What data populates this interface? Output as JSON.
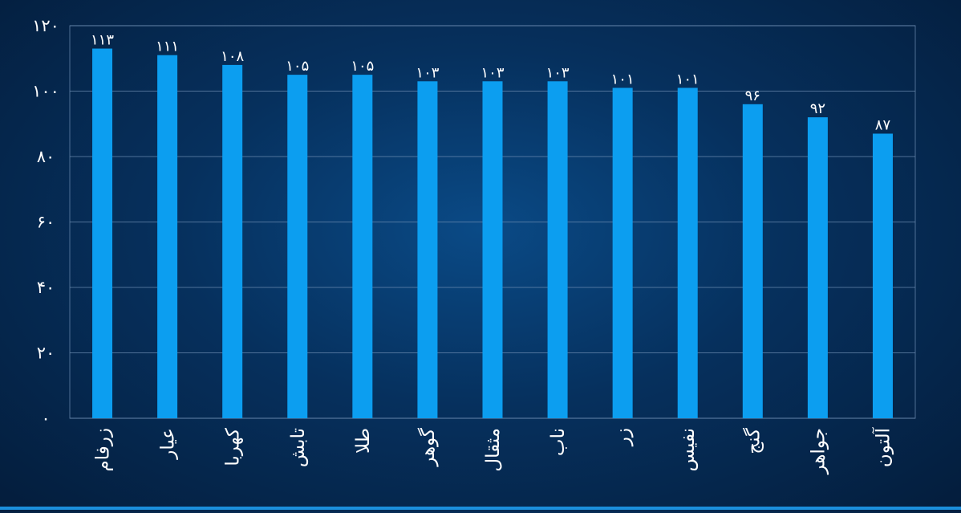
{
  "chart_data": {
    "type": "bar",
    "categories": [
      "زرفام",
      "عیار",
      "کهربا",
      "تابش",
      "طلا",
      "گوهر",
      "مثقال",
      "ناب",
      "زر",
      "نفیس",
      "گنج",
      "جواهر",
      "آلتون"
    ],
    "values": [
      113,
      111,
      108,
      105,
      105,
      103,
      103,
      103,
      101,
      101,
      96,
      92,
      87
    ],
    "value_labels": [
      "۱۱۳",
      "۱۱۱",
      "۱۰۸",
      "۱۰۵",
      "۱۰۵",
      "۱۰۳",
      "۱۰۳",
      "۱۰۳",
      "۱۰۱",
      "۱۰۱",
      "۹۶",
      "۹۲",
      "۸۷"
    ],
    "yticks": [
      0,
      20,
      40,
      60,
      80,
      100,
      120
    ],
    "ytick_labels": [
      "۰",
      "۲۰",
      "۴۰",
      "۶۰",
      "۸۰",
      "۱۰۰",
      "۱۲۰"
    ],
    "ylim": [
      0,
      120
    ],
    "title": "",
    "xlabel": "",
    "ylabel": "",
    "grid": true,
    "bar_color": "#0c9ef0",
    "grid_color": "#6f8fb3",
    "text_color": "#ffffff"
  }
}
